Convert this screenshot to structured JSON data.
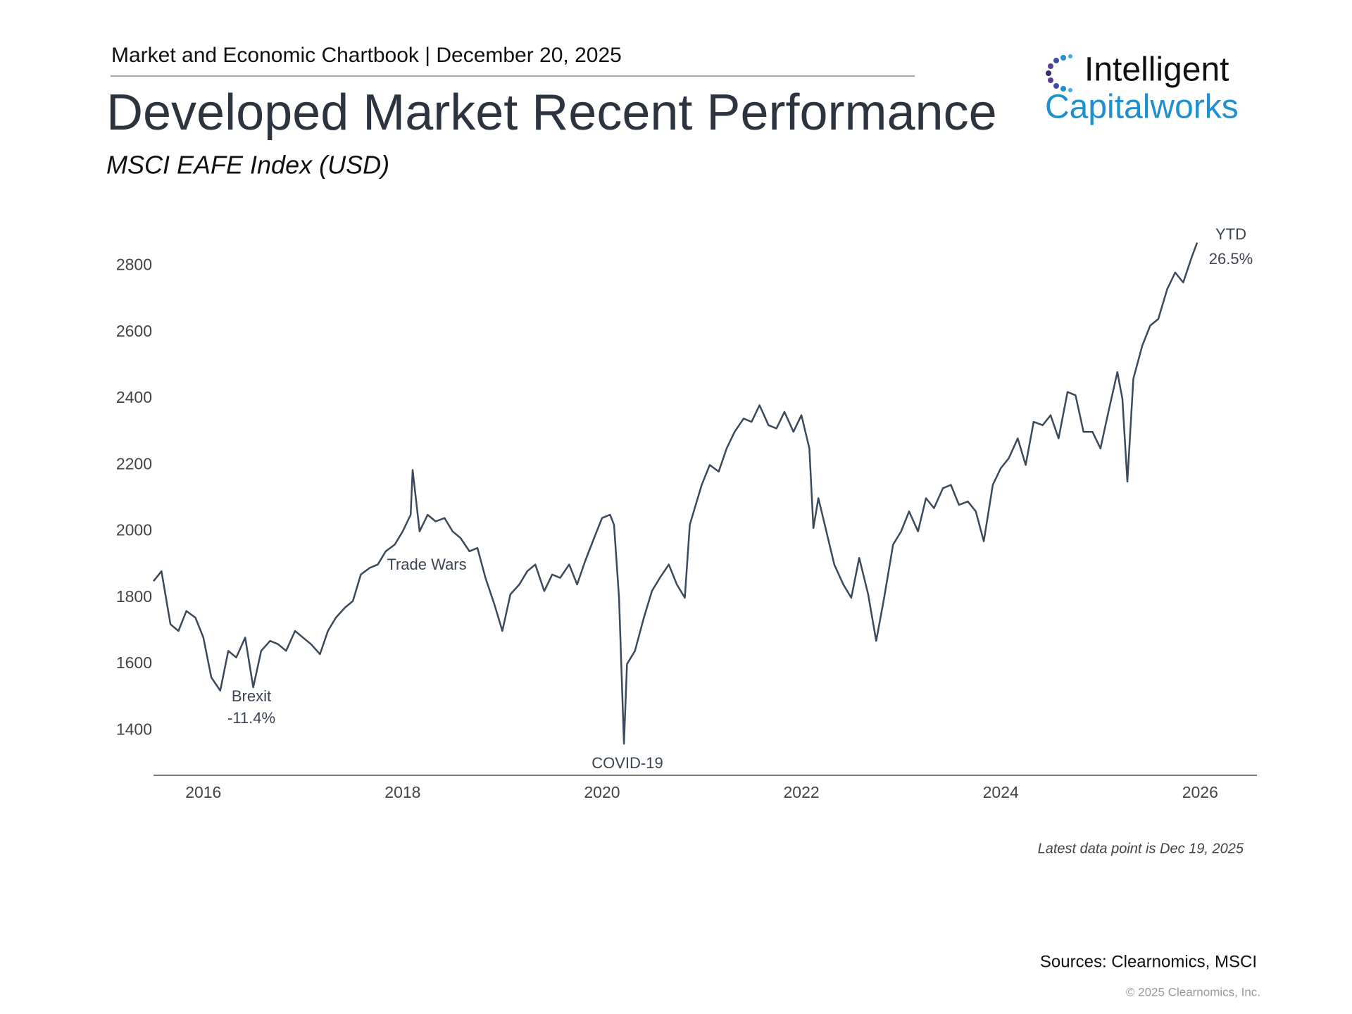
{
  "header": {
    "chartbook": "Market and Economic Chartbook | December 20, 2025",
    "logo_top": "Intelligent",
    "logo_bottom": "Capitalworks"
  },
  "chart_data": {
    "type": "line",
    "title": "Developed Market Recent Performance",
    "subtitle": "MSCI EAFE Index (USD)",
    "color": "#3b4a5a",
    "x": [
      2015.5,
      2015.58,
      2015.67,
      2015.75,
      2015.83,
      2015.92,
      2016.0,
      2016.08,
      2016.17,
      2016.25,
      2016.33,
      2016.42,
      2016.5,
      2016.58,
      2016.67,
      2016.75,
      2016.83,
      2016.92,
      2017.0,
      2017.08,
      2017.17,
      2017.25,
      2017.33,
      2017.42,
      2017.5,
      2017.58,
      2017.67,
      2017.75,
      2017.83,
      2017.92,
      2018.0,
      2018.08,
      2018.1,
      2018.17,
      2018.25,
      2018.33,
      2018.42,
      2018.5,
      2018.58,
      2018.67,
      2018.75,
      2018.83,
      2018.92,
      2019.0,
      2019.08,
      2019.17,
      2019.25,
      2019.33,
      2019.42,
      2019.5,
      2019.58,
      2019.67,
      2019.75,
      2019.83,
      2019.92,
      2020.0,
      2020.08,
      2020.12,
      2020.17,
      2020.22,
      2020.25,
      2020.33,
      2020.42,
      2020.5,
      2020.58,
      2020.67,
      2020.75,
      2020.83,
      2020.88,
      2020.92,
      2021.0,
      2021.08,
      2021.17,
      2021.25,
      2021.33,
      2021.42,
      2021.5,
      2021.58,
      2021.67,
      2021.75,
      2021.83,
      2021.92,
      2022.0,
      2022.08,
      2022.12,
      2022.17,
      2022.25,
      2022.33,
      2022.42,
      2022.5,
      2022.58,
      2022.67,
      2022.75,
      2022.83,
      2022.92,
      2023.0,
      2023.08,
      2023.17,
      2023.25,
      2023.33,
      2023.42,
      2023.5,
      2023.58,
      2023.67,
      2023.75,
      2023.83,
      2023.92,
      2024.0,
      2024.08,
      2024.17,
      2024.25,
      2024.33,
      2024.42,
      2024.5,
      2024.58,
      2024.67,
      2024.75,
      2024.83,
      2024.92,
      2025.0,
      2025.08,
      2025.17,
      2025.22,
      2025.27,
      2025.33,
      2025.42,
      2025.5,
      2025.58,
      2025.67,
      2025.75,
      2025.83,
      2025.92,
      2025.97
    ],
    "values": [
      1850,
      1880,
      1720,
      1700,
      1760,
      1740,
      1680,
      1560,
      1520,
      1640,
      1620,
      1680,
      1530,
      1640,
      1670,
      1660,
      1640,
      1700,
      1680,
      1660,
      1630,
      1700,
      1740,
      1770,
      1790,
      1870,
      1890,
      1900,
      1940,
      1960,
      2000,
      2050,
      2185,
      2000,
      2050,
      2030,
      2040,
      2000,
      1980,
      1940,
      1950,
      1860,
      1780,
      1700,
      1810,
      1840,
      1880,
      1900,
      1820,
      1870,
      1860,
      1900,
      1840,
      1910,
      1980,
      2040,
      2050,
      2020,
      1800,
      1360,
      1600,
      1640,
      1740,
      1820,
      1860,
      1900,
      1840,
      1800,
      2020,
      2060,
      2140,
      2200,
      2180,
      2250,
      2300,
      2340,
      2330,
      2380,
      2320,
      2310,
      2360,
      2300,
      2350,
      2250,
      2010,
      2100,
      2000,
      1900,
      1840,
      1800,
      1920,
      1810,
      1670,
      1800,
      1960,
      2000,
      2060,
      2000,
      2100,
      2070,
      2130,
      2140,
      2080,
      2090,
      2060,
      1970,
      2140,
      2190,
      2220,
      2280,
      2200,
      2330,
      2320,
      2350,
      2280,
      2420,
      2410,
      2300,
      2300,
      2250,
      2360,
      2480,
      2400,
      2150,
      2460,
      2560,
      2620,
      2640,
      2730,
      2780,
      2750,
      2830,
      2870
    ],
    "xlim": [
      2015.5,
      2026.57
    ],
    "xticks": [
      2016,
      2018,
      2020,
      2022,
      2024,
      2026
    ],
    "ylim": [
      1265,
      2920
    ],
    "yticks": [
      1400,
      1600,
      1800,
      2000,
      2200,
      2400,
      2600,
      2800
    ],
    "grid": false,
    "annotations": [
      "Brexit",
      "-11.4%",
      "Trade Wars",
      "COVID-19",
      "YTD",
      "26.5%"
    ],
    "footnote": "Latest data point is Dec 19, 2025"
  },
  "footer": {
    "sources": "Sources: Clearnomics, MSCI",
    "copyright": "© 2025 Clearnomics, Inc."
  }
}
